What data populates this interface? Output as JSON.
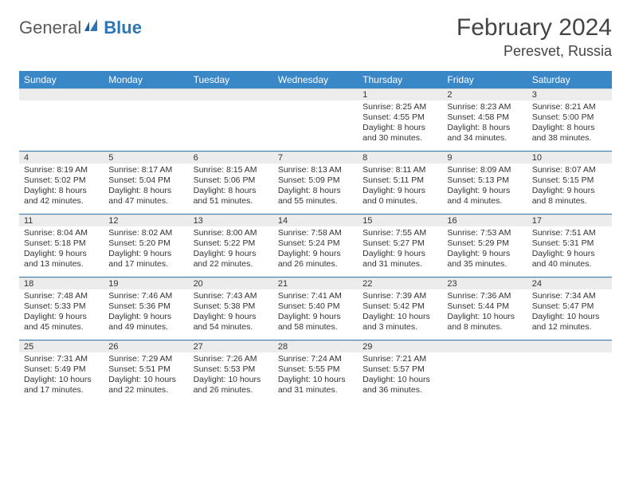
{
  "logo": {
    "general": "General",
    "blue": "Blue"
  },
  "title": {
    "month": "February 2024",
    "location": "Peresvet, Russia"
  },
  "colors": {
    "header_bg": "#3a87c8",
    "header_text": "#ffffff",
    "daynum_bg": "#ececec",
    "week_divider": "#3a7aae",
    "text": "#333333",
    "logo_gray": "#5a5a5a",
    "logo_blue": "#2c77b8"
  },
  "daysOfWeek": [
    "Sunday",
    "Monday",
    "Tuesday",
    "Wednesday",
    "Thursday",
    "Friday",
    "Saturday"
  ],
  "weeks": [
    [
      {
        "n": "",
        "sr": "",
        "ss": "",
        "dl": ""
      },
      {
        "n": "",
        "sr": "",
        "ss": "",
        "dl": ""
      },
      {
        "n": "",
        "sr": "",
        "ss": "",
        "dl": ""
      },
      {
        "n": "",
        "sr": "",
        "ss": "",
        "dl": ""
      },
      {
        "n": "1",
        "sr": "Sunrise: 8:25 AM",
        "ss": "Sunset: 4:55 PM",
        "dl": "Daylight: 8 hours and 30 minutes."
      },
      {
        "n": "2",
        "sr": "Sunrise: 8:23 AM",
        "ss": "Sunset: 4:58 PM",
        "dl": "Daylight: 8 hours and 34 minutes."
      },
      {
        "n": "3",
        "sr": "Sunrise: 8:21 AM",
        "ss": "Sunset: 5:00 PM",
        "dl": "Daylight: 8 hours and 38 minutes."
      }
    ],
    [
      {
        "n": "4",
        "sr": "Sunrise: 8:19 AM",
        "ss": "Sunset: 5:02 PM",
        "dl": "Daylight: 8 hours and 42 minutes."
      },
      {
        "n": "5",
        "sr": "Sunrise: 8:17 AM",
        "ss": "Sunset: 5:04 PM",
        "dl": "Daylight: 8 hours and 47 minutes."
      },
      {
        "n": "6",
        "sr": "Sunrise: 8:15 AM",
        "ss": "Sunset: 5:06 PM",
        "dl": "Daylight: 8 hours and 51 minutes."
      },
      {
        "n": "7",
        "sr": "Sunrise: 8:13 AM",
        "ss": "Sunset: 5:09 PM",
        "dl": "Daylight: 8 hours and 55 minutes."
      },
      {
        "n": "8",
        "sr": "Sunrise: 8:11 AM",
        "ss": "Sunset: 5:11 PM",
        "dl": "Daylight: 9 hours and 0 minutes."
      },
      {
        "n": "9",
        "sr": "Sunrise: 8:09 AM",
        "ss": "Sunset: 5:13 PM",
        "dl": "Daylight: 9 hours and 4 minutes."
      },
      {
        "n": "10",
        "sr": "Sunrise: 8:07 AM",
        "ss": "Sunset: 5:15 PM",
        "dl": "Daylight: 9 hours and 8 minutes."
      }
    ],
    [
      {
        "n": "11",
        "sr": "Sunrise: 8:04 AM",
        "ss": "Sunset: 5:18 PM",
        "dl": "Daylight: 9 hours and 13 minutes."
      },
      {
        "n": "12",
        "sr": "Sunrise: 8:02 AM",
        "ss": "Sunset: 5:20 PM",
        "dl": "Daylight: 9 hours and 17 minutes."
      },
      {
        "n": "13",
        "sr": "Sunrise: 8:00 AM",
        "ss": "Sunset: 5:22 PM",
        "dl": "Daylight: 9 hours and 22 minutes."
      },
      {
        "n": "14",
        "sr": "Sunrise: 7:58 AM",
        "ss": "Sunset: 5:24 PM",
        "dl": "Daylight: 9 hours and 26 minutes."
      },
      {
        "n": "15",
        "sr": "Sunrise: 7:55 AM",
        "ss": "Sunset: 5:27 PM",
        "dl": "Daylight: 9 hours and 31 minutes."
      },
      {
        "n": "16",
        "sr": "Sunrise: 7:53 AM",
        "ss": "Sunset: 5:29 PM",
        "dl": "Daylight: 9 hours and 35 minutes."
      },
      {
        "n": "17",
        "sr": "Sunrise: 7:51 AM",
        "ss": "Sunset: 5:31 PM",
        "dl": "Daylight: 9 hours and 40 minutes."
      }
    ],
    [
      {
        "n": "18",
        "sr": "Sunrise: 7:48 AM",
        "ss": "Sunset: 5:33 PM",
        "dl": "Daylight: 9 hours and 45 minutes."
      },
      {
        "n": "19",
        "sr": "Sunrise: 7:46 AM",
        "ss": "Sunset: 5:36 PM",
        "dl": "Daylight: 9 hours and 49 minutes."
      },
      {
        "n": "20",
        "sr": "Sunrise: 7:43 AM",
        "ss": "Sunset: 5:38 PM",
        "dl": "Daylight: 9 hours and 54 minutes."
      },
      {
        "n": "21",
        "sr": "Sunrise: 7:41 AM",
        "ss": "Sunset: 5:40 PM",
        "dl": "Daylight: 9 hours and 58 minutes."
      },
      {
        "n": "22",
        "sr": "Sunrise: 7:39 AM",
        "ss": "Sunset: 5:42 PM",
        "dl": "Daylight: 10 hours and 3 minutes."
      },
      {
        "n": "23",
        "sr": "Sunrise: 7:36 AM",
        "ss": "Sunset: 5:44 PM",
        "dl": "Daylight: 10 hours and 8 minutes."
      },
      {
        "n": "24",
        "sr": "Sunrise: 7:34 AM",
        "ss": "Sunset: 5:47 PM",
        "dl": "Daylight: 10 hours and 12 minutes."
      }
    ],
    [
      {
        "n": "25",
        "sr": "Sunrise: 7:31 AM",
        "ss": "Sunset: 5:49 PM",
        "dl": "Daylight: 10 hours and 17 minutes."
      },
      {
        "n": "26",
        "sr": "Sunrise: 7:29 AM",
        "ss": "Sunset: 5:51 PM",
        "dl": "Daylight: 10 hours and 22 minutes."
      },
      {
        "n": "27",
        "sr": "Sunrise: 7:26 AM",
        "ss": "Sunset: 5:53 PM",
        "dl": "Daylight: 10 hours and 26 minutes."
      },
      {
        "n": "28",
        "sr": "Sunrise: 7:24 AM",
        "ss": "Sunset: 5:55 PM",
        "dl": "Daylight: 10 hours and 31 minutes."
      },
      {
        "n": "29",
        "sr": "Sunrise: 7:21 AM",
        "ss": "Sunset: 5:57 PM",
        "dl": "Daylight: 10 hours and 36 minutes."
      },
      {
        "n": "",
        "sr": "",
        "ss": "",
        "dl": ""
      },
      {
        "n": "",
        "sr": "",
        "ss": "",
        "dl": ""
      }
    ]
  ]
}
